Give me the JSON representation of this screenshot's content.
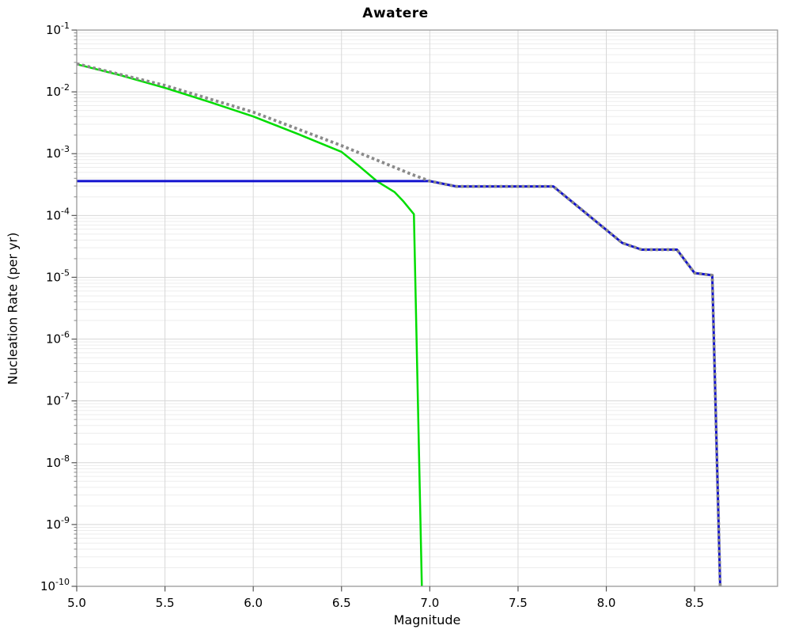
{
  "figure": {
    "title": "Awatere"
  },
  "chart_data": {
    "type": "line",
    "title": "Awatere",
    "xlabel": "Magnitude",
    "ylabel": "Nucleation Rate (per yr)",
    "x_axis": {
      "min": 5.0,
      "max": 8.97,
      "ticks": [
        5.0,
        5.5,
        6.0,
        6.5,
        7.0,
        7.5,
        8.0,
        8.5
      ],
      "tick_labels": [
        "5.0",
        "5.5",
        "6.0",
        "6.5",
        "7.0",
        "7.5",
        "8.0",
        "8.5"
      ]
    },
    "y_axis": {
      "scale": "log",
      "min_exp": -10,
      "max_exp": -1,
      "tick_exponents": [
        -1,
        -2,
        -3,
        -4,
        -5,
        -6,
        -7,
        -8,
        -9,
        -10
      ],
      "tick_base": "10"
    },
    "grid": {
      "major": true,
      "minor_log": true
    },
    "legend": "none",
    "series": [
      {
        "name": "green-solid-line",
        "color": "#00dd00",
        "style": "solid",
        "width": 2.5,
        "points": [
          [
            5.0,
            0.028
          ],
          [
            5.25,
            0.0185
          ],
          [
            5.5,
            0.0116
          ],
          [
            5.75,
            0.0069
          ],
          [
            6.0,
            0.004
          ],
          [
            6.25,
            0.0021
          ],
          [
            6.5,
            0.00107
          ],
          [
            6.6,
            0.00063
          ],
          [
            6.7,
            0.00036
          ],
          [
            6.8,
            0.00024
          ],
          [
            6.85,
            0.00017
          ],
          [
            6.91,
            0.000105
          ],
          [
            6.955,
            1e-10
          ]
        ]
      },
      {
        "name": "blue-solid-line",
        "color": "#1212cf",
        "style": "solid",
        "width": 3,
        "points": [
          [
            5.0,
            0.00036
          ],
          [
            7.0,
            0.00036
          ],
          [
            7.15,
            0.000295
          ],
          [
            7.7,
            0.000295
          ],
          [
            8.09,
            3.6e-05
          ],
          [
            8.2,
            2.8e-05
          ],
          [
            8.4,
            2.8e-05
          ],
          [
            8.5,
            1.17e-05
          ],
          [
            8.6,
            1.08e-05
          ],
          [
            8.645,
            1e-10
          ]
        ]
      },
      {
        "name": "gray-dotted-line",
        "color": "#8a8a8a",
        "style": "dotted",
        "width": 3.8,
        "points": [
          [
            5.0,
            0.0285
          ],
          [
            5.5,
            0.0127
          ],
          [
            6.0,
            0.0047
          ],
          [
            6.5,
            0.00135
          ],
          [
            6.9,
            0.00046
          ],
          [
            7.0,
            0.00036
          ],
          [
            7.15,
            0.000295
          ],
          [
            7.7,
            0.000295
          ],
          [
            8.09,
            3.6e-05
          ],
          [
            8.2,
            2.8e-05
          ],
          [
            8.4,
            2.8e-05
          ],
          [
            8.5,
            1.17e-05
          ],
          [
            8.6,
            1.08e-05
          ],
          [
            8.645,
            1e-10
          ]
        ]
      }
    ]
  }
}
